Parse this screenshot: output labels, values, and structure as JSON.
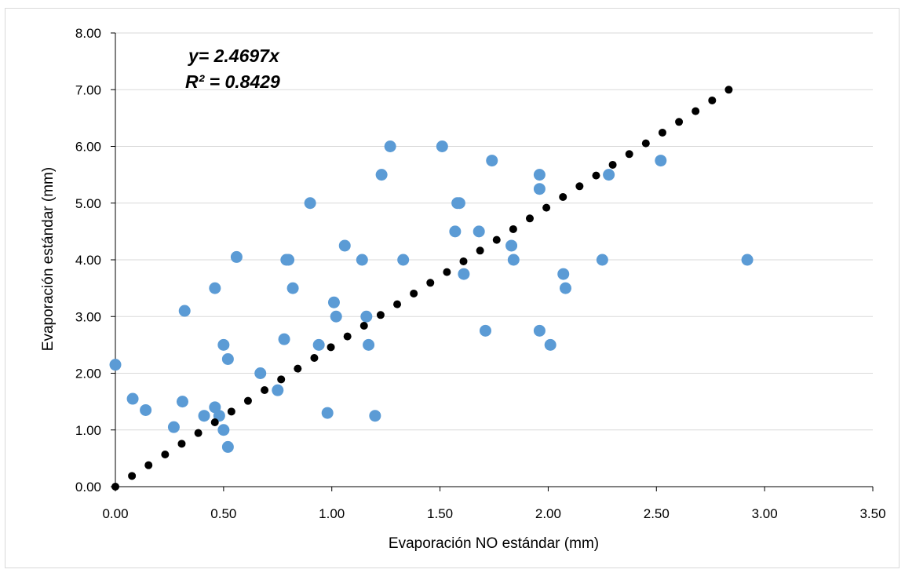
{
  "chart_data": {
    "type": "scatter",
    "title": "",
    "xlabel": "Evaporación NO estándar (mm)",
    "ylabel": "Evaporación estándar (mm)",
    "xlim": [
      0,
      3.5
    ],
    "ylim": [
      0,
      8
    ],
    "xticks": [
      "0.00",
      "0.50",
      "1.00",
      "1.50",
      "2.00",
      "2.50",
      "3.00",
      "3.50"
    ],
    "yticks": [
      "0.00",
      "1.00",
      "2.00",
      "3.00",
      "4.00",
      "5.00",
      "6.00",
      "7.00",
      "8.00"
    ],
    "grid": "horizontal",
    "legend": "none",
    "annotations": {
      "equation": "y= 2.4697x",
      "r_squared": "R² = 0.8429"
    },
    "colors": {
      "points": "#5b9bd5",
      "trendline": "#000000",
      "grid": "#d9d9d9",
      "axis": "#000000"
    },
    "series": [
      {
        "type": "scatter",
        "points": [
          [
            0.0,
            2.15
          ],
          [
            0.08,
            1.55
          ],
          [
            0.14,
            1.35
          ],
          [
            0.27,
            1.05
          ],
          [
            0.31,
            1.5
          ],
          [
            0.32,
            3.1
          ],
          [
            0.41,
            1.25
          ],
          [
            0.46,
            1.4
          ],
          [
            0.46,
            3.5
          ],
          [
            0.48,
            1.25
          ],
          [
            0.5,
            1.0
          ],
          [
            0.5,
            2.5
          ],
          [
            0.52,
            2.25
          ],
          [
            0.52,
            0.7
          ],
          [
            0.56,
            4.05
          ],
          [
            0.67,
            2.0
          ],
          [
            0.75,
            1.7
          ],
          [
            0.78,
            2.6
          ],
          [
            0.79,
            4.0
          ],
          [
            0.8,
            4.0
          ],
          [
            0.82,
            3.5
          ],
          [
            0.9,
            5.0
          ],
          [
            0.94,
            2.5
          ],
          [
            0.98,
            1.3
          ],
          [
            1.01,
            3.25
          ],
          [
            1.02,
            3.0
          ],
          [
            1.06,
            4.25
          ],
          [
            1.14,
            4.0
          ],
          [
            1.16,
            3.0
          ],
          [
            1.17,
            2.5
          ],
          [
            1.2,
            1.25
          ],
          [
            1.23,
            5.5
          ],
          [
            1.27,
            6.0
          ],
          [
            1.33,
            4.0
          ],
          [
            1.51,
            6.0
          ],
          [
            1.57,
            4.5
          ],
          [
            1.58,
            5.0
          ],
          [
            1.59,
            5.0
          ],
          [
            1.61,
            3.75
          ],
          [
            1.68,
            4.5
          ],
          [
            1.71,
            2.75
          ],
          [
            1.74,
            5.75
          ],
          [
            1.83,
            4.25
          ],
          [
            1.84,
            4.0
          ],
          [
            1.96,
            2.75
          ],
          [
            1.96,
            5.25
          ],
          [
            1.96,
            5.5
          ],
          [
            2.01,
            2.5
          ],
          [
            2.07,
            3.75
          ],
          [
            2.08,
            3.5
          ],
          [
            2.25,
            4.0
          ],
          [
            2.28,
            5.5
          ],
          [
            2.52,
            5.75
          ],
          [
            2.92,
            4.0
          ]
        ]
      },
      {
        "type": "trendline",
        "slope": 2.4697,
        "x_end": 2.87,
        "x_step": 0.0766
      }
    ]
  }
}
